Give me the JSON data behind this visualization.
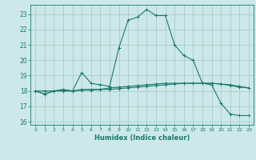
{
  "xlabel": "Humidex (Indice chaleur)",
  "bg_color": "#cce8e8",
  "grid_color": "#aacccc",
  "line_color": "#1a7a6e",
  "xlim": [
    -0.5,
    23.5
  ],
  "ylim": [
    15.8,
    23.6
  ],
  "yticks": [
    16,
    17,
    18,
    19,
    20,
    21,
    22,
    23
  ],
  "xticks": [
    0,
    1,
    2,
    3,
    4,
    5,
    6,
    7,
    8,
    9,
    10,
    11,
    12,
    13,
    14,
    15,
    16,
    17,
    18,
    19,
    20,
    21,
    22,
    23
  ],
  "line1_x": [
    0,
    1,
    2,
    3,
    4,
    5,
    6,
    7,
    8,
    9,
    10,
    11,
    12,
    13,
    14,
    15,
    16,
    17,
    18,
    19,
    20,
    21,
    22,
    23
  ],
  "line1_y": [
    18.0,
    17.8,
    18.0,
    18.1,
    18.0,
    19.2,
    18.5,
    18.4,
    18.3,
    20.8,
    22.6,
    22.8,
    23.3,
    22.9,
    22.9,
    21.0,
    20.3,
    20.0,
    18.5,
    18.4,
    17.2,
    16.5,
    16.4,
    16.4
  ],
  "line2_x": [
    0,
    1,
    2,
    3,
    4,
    5,
    6,
    7,
    8,
    9,
    10,
    11,
    12,
    13,
    14,
    15,
    16,
    17,
    18,
    19,
    20,
    21,
    22,
    23
  ],
  "line2_y": [
    18.0,
    17.8,
    18.0,
    18.05,
    18.0,
    18.1,
    18.1,
    18.1,
    18.2,
    18.25,
    18.3,
    18.35,
    18.4,
    18.45,
    18.5,
    18.5,
    18.5,
    18.5,
    18.5,
    18.5,
    18.45,
    18.4,
    18.3,
    18.2
  ],
  "line3_x": [
    0,
    1,
    2,
    3,
    4,
    5,
    6,
    7,
    8,
    9,
    10,
    11,
    12,
    13,
    14,
    15,
    16,
    17,
    18,
    19,
    20,
    21,
    22,
    23
  ],
  "line3_y": [
    18.0,
    18.0,
    18.0,
    18.0,
    18.0,
    18.05,
    18.05,
    18.1,
    18.1,
    18.15,
    18.2,
    18.25,
    18.3,
    18.35,
    18.4,
    18.45,
    18.5,
    18.5,
    18.5,
    18.5,
    18.45,
    18.35,
    18.25,
    18.2
  ]
}
